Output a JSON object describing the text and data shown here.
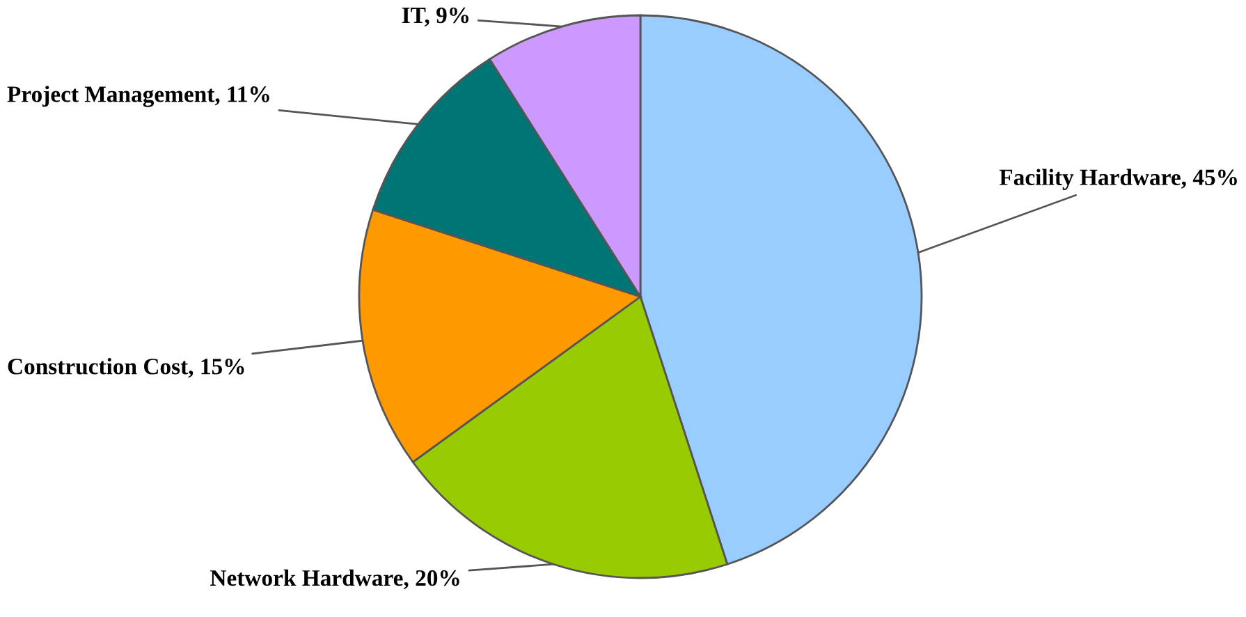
{
  "chart_data": {
    "type": "pie",
    "categories": [
      "Facility Hardware",
      "Network Hardware",
      "Construction Cost",
      "Project Management",
      "IT"
    ],
    "values": [
      45,
      20,
      15,
      11,
      9
    ],
    "value_labels": [
      "45%",
      "20%",
      "15%",
      "11%",
      "9%"
    ],
    "colors": [
      "#99ccff",
      "#99cc00",
      "#ff9900",
      "#007575",
      "#cc99ff"
    ]
  }
}
